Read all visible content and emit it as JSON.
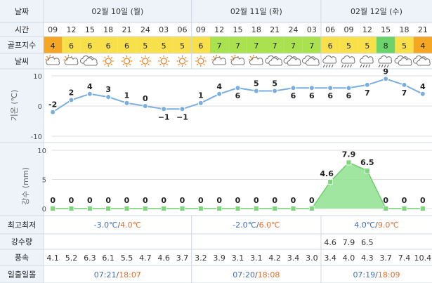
{
  "row_labels": {
    "date": "날짜",
    "time": "시간",
    "golf_index": "골프지수",
    "weather": "날씨",
    "min_max": "최고최저",
    "precip": "강수량",
    "wind": "풍속",
    "sun": "일출일몰"
  },
  "temp_axis_label": "기온 (℃)",
  "rain_axis_label": "강수 (mm)",
  "days": [
    {
      "label": "02월 10일 (월)",
      "min": "-3.0℃",
      "sep": "/",
      "max": "4.0℃",
      "sunrise": "07:21",
      "sunset": "18:07"
    },
    {
      "label": "02월 11일 (화)",
      "min": "-2.0℃",
      "sep": "/",
      "max": "6.0℃",
      "sunrise": "07:20",
      "sunset": "18:08"
    },
    {
      "label": "02월 12일 (수)",
      "min": "4.0℃",
      "sep": "/",
      "max": "9.0℃",
      "sunrise": "07:19",
      "sunset": "18:09"
    }
  ],
  "hours": [
    "09",
    "12",
    "15",
    "18",
    "21",
    "24",
    "03",
    "06",
    "09",
    "12",
    "15",
    "18",
    "21",
    "24",
    "03",
    "06",
    "09",
    "12",
    "15",
    "18",
    "21"
  ],
  "golf_index": [
    "4",
    "6",
    "6",
    "6",
    "6",
    "5",
    "5",
    "5",
    "6",
    "7",
    "7",
    "7",
    "7",
    "7",
    "7",
    "6",
    "5",
    "5",
    "8",
    "5",
    "4"
  ],
  "weather_icons": [
    "partly-cloudy-icon",
    "partly-cloudy-icon",
    "cloudy-icon",
    "sunny-icon",
    "sunny-icon",
    "sunny-icon",
    "sunny-icon",
    "sunny-icon",
    "sunny-icon",
    "partly-cloudy-icon",
    "partly-cloudy-icon",
    "partly-cloudy-icon",
    "cloudy-icon",
    "cloudy-icon",
    "cloudy-icon",
    "rain-icon",
    "rain-icon",
    "rain-icon",
    "rain-icon",
    "cloudy-icon",
    "cloudy-icon"
  ],
  "precip_amounts": [
    "",
    "",
    "",
    "",
    "",
    "",
    "",
    "",
    "",
    "",
    "",
    "",
    "",
    "",
    "",
    "4.6",
    "7.9",
    "6.5",
    "",
    "",
    ""
  ],
  "wind": [
    "4.1",
    "5.2",
    "6.3",
    "6.1",
    "5.5",
    "4.7",
    "4.6",
    "3.7",
    "3.2",
    "3.9",
    "3.1",
    "3.1",
    "4.2",
    "3.4",
    "3.0",
    "3.4",
    "4.0",
    "4.3",
    "3.7",
    "7.4",
    "10.4"
  ],
  "colors": {
    "golf_4": "#f5a623",
    "golf_5": "#f7e04a",
    "golf_6": "#f7e04a",
    "golf_7": "#a9e24e",
    "golf_8": "#6bd36b",
    "temp_line": "#7aaee0",
    "rain_area": "#8fe08f",
    "min_color": "#3d6fb8",
    "max_color": "#e07030",
    "header_bg": "#eef3fa"
  },
  "chart_data": [
    {
      "type": "line",
      "ylabel": "기온 (℃)",
      "ylim": [
        -10,
        10
      ],
      "yticks": [
        10,
        0,
        -10
      ],
      "x": [
        "09",
        "12",
        "15",
        "18",
        "21",
        "24",
        "03",
        "06",
        "09",
        "12",
        "15",
        "18",
        "21",
        "24",
        "03",
        "06",
        "09",
        "12",
        "15",
        "18",
        "21"
      ],
      "values": [
        -2,
        2,
        4,
        3,
        1,
        0,
        -1,
        -1,
        1,
        4,
        6,
        5,
        5,
        6,
        6,
        6,
        6,
        7,
        9,
        7,
        4
      ],
      "data_labels": [
        "-2",
        "2",
        "4",
        "3",
        "1",
        "0",
        "−1",
        "−1",
        "1",
        "4",
        "6",
        "5",
        "5",
        "6",
        "6",
        "6",
        "6",
        "7",
        "9",
        "7",
        "4"
      ],
      "grid": true
    },
    {
      "type": "area",
      "ylabel": "강수 (mm)",
      "ylim": [
        0,
        10
      ],
      "yticks": [
        10,
        5,
        0
      ],
      "x": [
        "09",
        "12",
        "15",
        "18",
        "21",
        "24",
        "03",
        "06",
        "09",
        "12",
        "15",
        "18",
        "21",
        "24",
        "03",
        "06",
        "09",
        "12",
        "15",
        "18",
        "21"
      ],
      "values": [
        0,
        0,
        0,
        0,
        0,
        0,
        0,
        0,
        0,
        0,
        0,
        0,
        0,
        0,
        0,
        4.6,
        7.9,
        6.5,
        0,
        0,
        0
      ],
      "data_labels": [
        "0",
        "0",
        "0",
        "0",
        "0",
        "0",
        "0",
        "0",
        "0",
        "0",
        "0",
        "0",
        "0",
        "0",
        "0",
        "4.6",
        "7.9",
        "6.5",
        "0",
        "0",
        "0"
      ],
      "grid": true
    }
  ]
}
